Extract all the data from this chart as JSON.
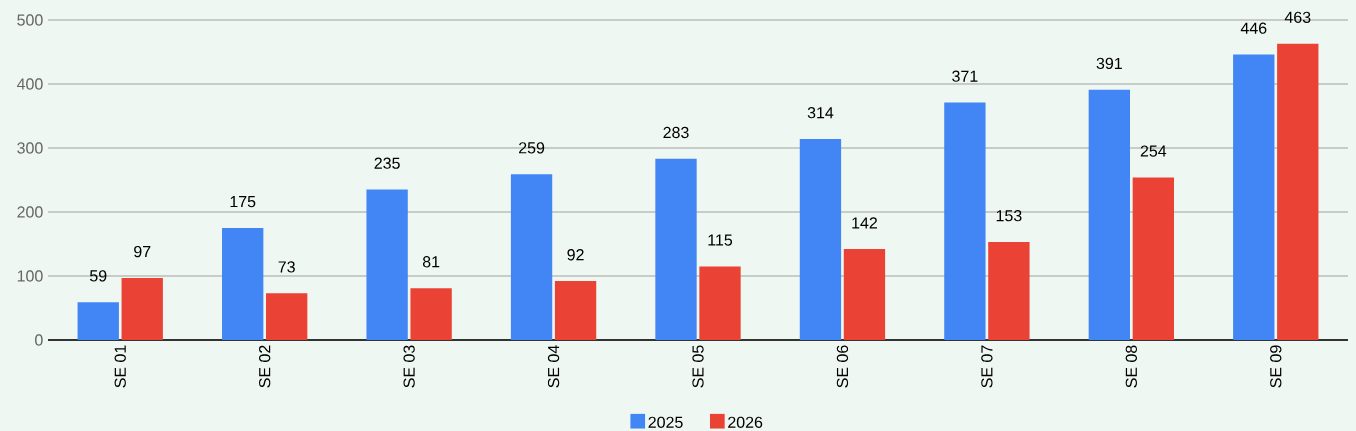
{
  "chart_data": {
    "type": "bar",
    "categories": [
      "SE 01",
      "SE 02",
      "SE 03",
      "SE 04",
      "SE 05",
      "SE 06",
      "SE 07",
      "SE 08",
      "SE 09"
    ],
    "series": [
      {
        "name": "2025",
        "color": "#4285f4",
        "values": [
          59,
          175,
          235,
          259,
          283,
          314,
          371,
          391,
          446
        ]
      },
      {
        "name": "2026",
        "color": "#ea4335",
        "values": [
          97,
          73,
          81,
          92,
          115,
          142,
          153,
          254,
          463
        ]
      }
    ],
    "ylim": [
      0,
      500
    ],
    "yticks": [
      0,
      100,
      200,
      300,
      400,
      500
    ],
    "grid": "y",
    "legend": "bottom",
    "data_labels": true
  }
}
